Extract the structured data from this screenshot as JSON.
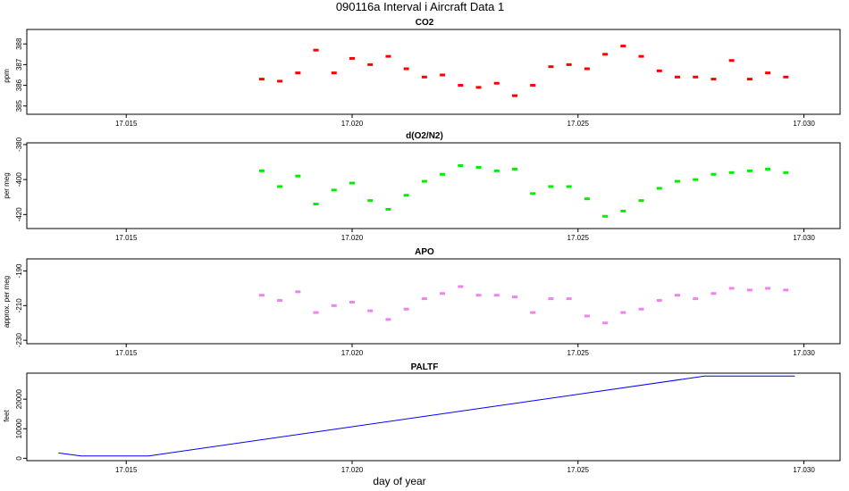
{
  "page": {
    "title": "090116a   Interval i Aircraft Data 1",
    "xlabel": "day of year"
  },
  "chart_data": [
    {
      "type": "scatter",
      "title": "CO2",
      "ylabel": "ppm",
      "color": "#ff0000",
      "x_ticks": [
        "17.015",
        "17.020",
        "17.025",
        "17.030"
      ],
      "y_ticks": [
        "385",
        "386",
        "387",
        "388"
      ],
      "xlim": [
        17.0128,
        17.0308
      ],
      "ylim": [
        384.6,
        388.7
      ],
      "grid": false,
      "series": [
        {
          "x": [
            17.018,
            17.0184,
            17.0188,
            17.0192,
            17.0196,
            17.02,
            17.0204,
            17.0208,
            17.0212,
            17.0216,
            17.022,
            17.0224,
            17.0228,
            17.0232,
            17.0236,
            17.024,
            17.0244,
            17.0248,
            17.0252,
            17.0256,
            17.026,
            17.0264,
            17.0268,
            17.0272,
            17.0276,
            17.028,
            17.0284,
            17.0288,
            17.0292,
            17.0296
          ],
          "y": [
            386.3,
            386.2,
            386.6,
            387.7,
            386.6,
            387.3,
            387.0,
            387.4,
            386.8,
            386.4,
            386.5,
            386.0,
            385.9,
            386.1,
            385.5,
            386.0,
            386.9,
            387.0,
            386.8,
            387.5,
            387.9,
            387.4,
            386.7,
            386.4,
            386.4,
            386.3,
            387.2,
            386.3,
            386.6,
            386.4
          ]
        }
      ]
    },
    {
      "type": "scatter",
      "title": "d(O2/N2)",
      "ylabel": "per meg",
      "color": "#00ee00",
      "x_ticks": [
        "17.015",
        "17.020",
        "17.025",
        "17.030"
      ],
      "y_ticks": [
        "-420",
        "-400",
        "-380"
      ],
      "xlim": [
        17.0128,
        17.0308
      ],
      "ylim": [
        -428,
        -379
      ],
      "grid": false,
      "series": [
        {
          "x": [
            17.018,
            17.0184,
            17.0188,
            17.0192,
            17.0196,
            17.02,
            17.0204,
            17.0208,
            17.0212,
            17.0216,
            17.022,
            17.0224,
            17.0228,
            17.0232,
            17.0236,
            17.024,
            17.0244,
            17.0248,
            17.0252,
            17.0256,
            17.026,
            17.0264,
            17.0268,
            17.0272,
            17.0276,
            17.028,
            17.0284,
            17.0288,
            17.0292,
            17.0296
          ],
          "y": [
            -395,
            -404,
            -398,
            -414,
            -406,
            -402,
            -412,
            -417,
            -409,
            -401,
            -397,
            -392,
            -393,
            -395,
            -394,
            -408,
            -404,
            -404,
            -411,
            -421,
            -418,
            -412,
            -405,
            -401,
            -400,
            -397,
            -396,
            -395,
            -394,
            -396
          ]
        }
      ]
    },
    {
      "type": "scatter",
      "title": "APO",
      "ylabel": "approx. per meg",
      "color": "#ee82ee",
      "x_ticks": [
        "17.015",
        "17.020",
        "17.025",
        "17.030"
      ],
      "y_ticks": [
        "-230",
        "-210",
        "-190"
      ],
      "xlim": [
        17.0128,
        17.0308
      ],
      "ylim": [
        -232,
        -183
      ],
      "grid": false,
      "series": [
        {
          "x": [
            17.018,
            17.0184,
            17.0188,
            17.0192,
            17.0196,
            17.02,
            17.0204,
            17.0208,
            17.0212,
            17.0216,
            17.022,
            17.0224,
            17.0228,
            17.0232,
            17.0236,
            17.024,
            17.0244,
            17.0248,
            17.0252,
            17.0256,
            17.026,
            17.0264,
            17.0268,
            17.0272,
            17.0276,
            17.028,
            17.0284,
            17.0288,
            17.0292,
            17.0296
          ],
          "y": [
            -204,
            -207,
            -202,
            -214,
            -210,
            -208,
            -213,
            -218,
            -212,
            -206,
            -203,
            -199,
            -204,
            -204,
            -205,
            -214,
            -206,
            -206,
            -216,
            -220,
            -214,
            -212,
            -207,
            -204,
            -206,
            -203,
            -200,
            -201,
            -200,
            -201
          ]
        }
      ]
    },
    {
      "type": "line",
      "title": "PALTF",
      "ylabel": "feet",
      "color": "#0000ff",
      "x_ticks": [
        "17.015",
        "17.020",
        "17.025",
        "17.030"
      ],
      "y_ticks": [
        "0",
        "10000",
        "20000"
      ],
      "xlim": [
        17.0128,
        17.0308
      ],
      "ylim": [
        -800,
        28800
      ],
      "grid": false,
      "series": [
        {
          "x": [
            17.0135,
            17.014,
            17.0145,
            17.015,
            17.0155,
            17.0278,
            17.0298
          ],
          "y": [
            1800,
            800,
            800,
            800,
            800,
            27800,
            27800
          ]
        }
      ]
    }
  ]
}
